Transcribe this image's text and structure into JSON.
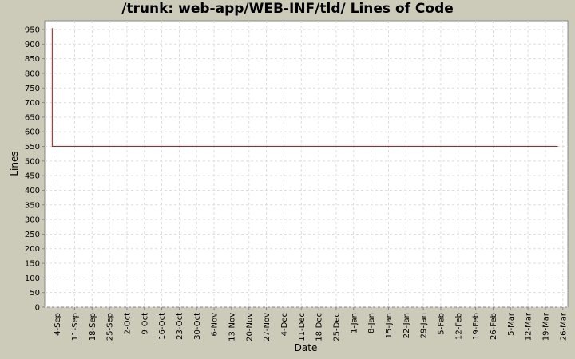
{
  "chart_data": {
    "type": "line",
    "title": "/trunk: web-app/WEB-INF/tld/ Lines of Code",
    "xlabel": "Date",
    "ylabel": "Lines",
    "ylim": [
      0,
      980
    ],
    "xlim": [
      "30-Aug",
      "28-Mar"
    ],
    "yticks": [
      0,
      50,
      100,
      150,
      200,
      250,
      300,
      350,
      400,
      450,
      500,
      550,
      600,
      650,
      700,
      750,
      800,
      850,
      900,
      950
    ],
    "xticks": [
      "4-Sep",
      "11-Sep",
      "18-Sep",
      "25-Sep",
      "2-Oct",
      "9-Oct",
      "16-Oct",
      "23-Oct",
      "30-Oct",
      "6-Nov",
      "13-Nov",
      "20-Nov",
      "27-Nov",
      "4-Dec",
      "11-Dec",
      "18-Dec",
      "25-Dec",
      "1-Jan",
      "8-Jan",
      "15-Jan",
      "22-Jan",
      "29-Jan",
      "5-Feb",
      "12-Feb",
      "19-Feb",
      "26-Feb",
      "5-Mar",
      "12-Mar",
      "19-Mar",
      "26-Mar"
    ],
    "grid": true,
    "series": [
      {
        "color": "#ff0000",
        "points": [
          {
            "x": "2-Sep",
            "y": 955
          },
          {
            "x": "2-Sep",
            "y": 550
          },
          {
            "x": "24-Mar",
            "y": 550
          }
        ]
      }
    ]
  }
}
